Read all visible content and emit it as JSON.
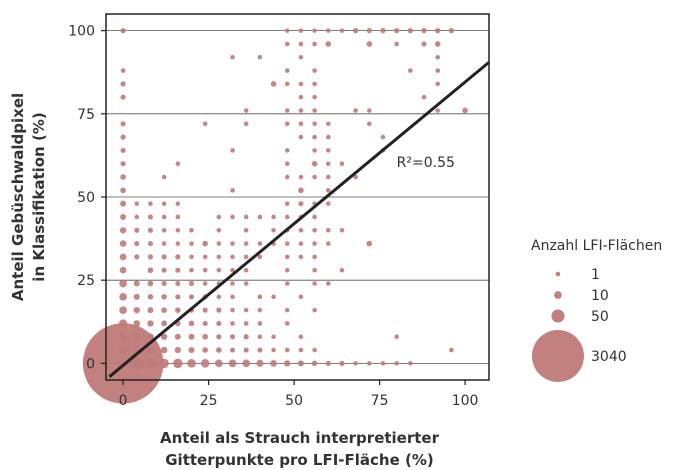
{
  "chart_data": {
    "type": "scatter",
    "title": "",
    "xlabel": [
      "Anteil als Strauch interpretierter",
      "Gitterpunkte pro LFI-Fläche (%)"
    ],
    "ylabel": [
      "Anteil Gebüschwaldpixel",
      "in Klassifikation (%)"
    ],
    "xlim": [
      -5,
      107
    ],
    "ylim": [
      -5,
      105
    ],
    "xticks": [
      0,
      25,
      50,
      75,
      100
    ],
    "yticks": [
      0,
      25,
      50,
      75,
      100
    ],
    "grid": "horizontal",
    "point_color": "#bf7a78",
    "line_color": "#222222",
    "regression_line": {
      "x": [
        -4,
        107
      ],
      "y": [
        -4,
        90.5
      ]
    },
    "annotation": {
      "text": "R²=0.55",
      "x": 80,
      "y": 59
    },
    "legend": {
      "title": "Anzahl LFI-Flächen",
      "position": "right",
      "entries": [
        {
          "label": "1",
          "count": 1
        },
        {
          "label": "10",
          "count": 10
        },
        {
          "label": "50",
          "count": 50
        },
        {
          "label": "3040",
          "count": 3040
        }
      ]
    },
    "points": [
      [
        0,
        0,
        3040
      ],
      [
        4,
        0,
        50
      ],
      [
        8,
        0,
        30
      ],
      [
        12,
        0,
        20
      ],
      [
        16,
        0,
        20
      ],
      [
        20,
        0,
        15
      ],
      [
        24,
        0,
        15
      ],
      [
        28,
        0,
        10
      ],
      [
        32,
        0,
        10
      ],
      [
        36,
        0,
        10
      ],
      [
        40,
        0,
        8
      ],
      [
        44,
        0,
        6
      ],
      [
        48,
        0,
        5
      ],
      [
        52,
        0,
        4
      ],
      [
        56,
        0,
        3
      ],
      [
        60,
        0,
        2
      ],
      [
        64,
        0,
        2
      ],
      [
        68,
        0,
        1
      ],
      [
        72,
        0,
        1
      ],
      [
        76,
        0,
        1
      ],
      [
        80,
        0,
        1
      ],
      [
        84,
        0,
        1
      ],
      [
        0,
        4,
        20
      ],
      [
        4,
        4,
        10
      ],
      [
        8,
        4,
        8
      ],
      [
        12,
        4,
        6
      ],
      [
        16,
        4,
        5
      ],
      [
        20,
        4,
        4
      ],
      [
        24,
        4,
        3
      ],
      [
        28,
        4,
        3
      ],
      [
        32,
        4,
        2
      ],
      [
        36,
        4,
        2
      ],
      [
        40,
        4,
        2
      ],
      [
        44,
        4,
        1
      ],
      [
        48,
        4,
        1
      ],
      [
        52,
        4,
        1
      ],
      [
        56,
        4,
        1
      ],
      [
        96,
        4,
        1
      ],
      [
        0,
        8,
        15
      ],
      [
        4,
        8,
        8
      ],
      [
        8,
        8,
        6
      ],
      [
        12,
        8,
        5
      ],
      [
        16,
        8,
        4
      ],
      [
        20,
        8,
        4
      ],
      [
        24,
        8,
        3
      ],
      [
        28,
        8,
        2
      ],
      [
        32,
        8,
        2
      ],
      [
        36,
        8,
        2
      ],
      [
        40,
        8,
        1
      ],
      [
        44,
        8,
        1
      ],
      [
        52,
        8,
        1
      ],
      [
        80,
        8,
        1
      ],
      [
        0,
        12,
        12
      ],
      [
        4,
        12,
        6
      ],
      [
        8,
        12,
        5
      ],
      [
        12,
        12,
        4
      ],
      [
        16,
        12,
        3
      ],
      [
        20,
        12,
        3
      ],
      [
        24,
        12,
        2
      ],
      [
        28,
        12,
        2
      ],
      [
        32,
        12,
        1
      ],
      [
        36,
        12,
        1
      ],
      [
        40,
        12,
        1
      ],
      [
        48,
        12,
        1
      ],
      [
        0,
        16,
        10
      ],
      [
        4,
        16,
        5
      ],
      [
        8,
        16,
        4
      ],
      [
        12,
        16,
        3
      ],
      [
        16,
        16,
        3
      ],
      [
        20,
        16,
        2
      ],
      [
        24,
        16,
        2
      ],
      [
        28,
        16,
        2
      ],
      [
        32,
        16,
        1
      ],
      [
        36,
        16,
        1
      ],
      [
        40,
        16,
        1
      ],
      [
        48,
        16,
        1
      ],
      [
        56,
        16,
        1
      ],
      [
        0,
        20,
        10
      ],
      [
        4,
        20,
        4
      ],
      [
        8,
        20,
        3
      ],
      [
        12,
        20,
        3
      ],
      [
        16,
        20,
        2
      ],
      [
        20,
        20,
        2
      ],
      [
        24,
        20,
        2
      ],
      [
        28,
        20,
        1
      ],
      [
        32,
        20,
        1
      ],
      [
        40,
        20,
        1
      ],
      [
        44,
        20,
        1
      ],
      [
        52,
        20,
        1
      ],
      [
        0,
        24,
        10
      ],
      [
        4,
        24,
        4
      ],
      [
        8,
        24,
        3
      ],
      [
        12,
        24,
        2
      ],
      [
        16,
        24,
        2
      ],
      [
        20,
        24,
        2
      ],
      [
        24,
        24,
        1
      ],
      [
        28,
        24,
        1
      ],
      [
        32,
        24,
        1
      ],
      [
        36,
        24,
        1
      ],
      [
        48,
        24,
        1
      ],
      [
        56,
        24,
        1
      ],
      [
        60,
        24,
        1
      ],
      [
        0,
        28,
        6
      ],
      [
        8,
        28,
        3
      ],
      [
        12,
        28,
        2
      ],
      [
        16,
        28,
        2
      ],
      [
        20,
        28,
        1
      ],
      [
        24,
        28,
        1
      ],
      [
        28,
        28,
        1
      ],
      [
        32,
        28,
        1
      ],
      [
        36,
        28,
        1
      ],
      [
        48,
        28,
        1
      ],
      [
        56,
        28,
        1
      ],
      [
        64,
        28,
        1
      ],
      [
        0,
        32,
        6
      ],
      [
        4,
        32,
        2
      ],
      [
        8,
        32,
        2
      ],
      [
        12,
        32,
        2
      ],
      [
        16,
        32,
        2
      ],
      [
        20,
        32,
        1
      ],
      [
        24,
        32,
        1
      ],
      [
        28,
        32,
        1
      ],
      [
        32,
        32,
        1
      ],
      [
        36,
        32,
        1
      ],
      [
        40,
        32,
        1
      ],
      [
        48,
        32,
        1
      ],
      [
        52,
        32,
        1
      ],
      [
        56,
        32,
        1
      ],
      [
        0,
        36,
        6
      ],
      [
        4,
        36,
        2
      ],
      [
        8,
        36,
        2
      ],
      [
        12,
        36,
        1
      ],
      [
        16,
        36,
        1
      ],
      [
        20,
        36,
        1
      ],
      [
        24,
        36,
        3
      ],
      [
        28,
        36,
        1
      ],
      [
        32,
        36,
        1
      ],
      [
        36,
        36,
        1
      ],
      [
        40,
        36,
        1
      ],
      [
        44,
        36,
        1
      ],
      [
        48,
        36,
        1
      ],
      [
        52,
        36,
        1
      ],
      [
        56,
        36,
        1
      ],
      [
        60,
        36,
        1
      ],
      [
        72,
        36,
        3
      ],
      [
        0,
        40,
        5
      ],
      [
        4,
        40,
        2
      ],
      [
        8,
        40,
        2
      ],
      [
        12,
        40,
        1
      ],
      [
        16,
        40,
        1
      ],
      [
        20,
        40,
        1
      ],
      [
        28,
        40,
        1
      ],
      [
        36,
        40,
        1
      ],
      [
        44,
        40,
        1
      ],
      [
        48,
        40,
        1
      ],
      [
        52,
        40,
        1
      ],
      [
        56,
        40,
        1
      ],
      [
        60,
        40,
        1
      ],
      [
        64,
        40,
        1
      ],
      [
        0,
        44,
        4
      ],
      [
        4,
        44,
        1
      ],
      [
        8,
        44,
        2
      ],
      [
        12,
        44,
        1
      ],
      [
        16,
        44,
        1
      ],
      [
        28,
        44,
        1
      ],
      [
        32,
        44,
        1
      ],
      [
        36,
        44,
        1
      ],
      [
        40,
        44,
        1
      ],
      [
        44,
        44,
        1
      ],
      [
        48,
        44,
        1
      ],
      [
        52,
        44,
        1
      ],
      [
        56,
        44,
        1
      ],
      [
        0,
        48,
        4
      ],
      [
        4,
        48,
        1
      ],
      [
        8,
        48,
        1
      ],
      [
        12,
        48,
        1
      ],
      [
        16,
        48,
        1
      ],
      [
        48,
        48,
        1
      ],
      [
        52,
        48,
        2
      ],
      [
        56,
        48,
        1
      ],
      [
        60,
        48,
        1
      ],
      [
        0,
        52,
        3
      ],
      [
        32,
        52,
        1
      ],
      [
        52,
        52,
        3
      ],
      [
        60,
        52,
        1
      ],
      [
        0,
        56,
        3
      ],
      [
        12,
        56,
        1
      ],
      [
        48,
        56,
        1
      ],
      [
        52,
        56,
        1
      ],
      [
        56,
        56,
        1
      ],
      [
        60,
        56,
        1
      ],
      [
        68,
        56,
        1
      ],
      [
        0,
        60,
        2
      ],
      [
        16,
        60,
        1
      ],
      [
        48,
        60,
        1
      ],
      [
        56,
        60,
        3
      ],
      [
        60,
        60,
        1
      ],
      [
        64,
        60,
        1
      ],
      [
        0,
        64,
        2
      ],
      [
        32,
        64,
        1
      ],
      [
        48,
        64,
        1
      ],
      [
        56,
        64,
        1
      ],
      [
        60,
        64,
        1
      ],
      [
        76,
        64,
        1
      ],
      [
        0,
        68,
        2
      ],
      [
        52,
        68,
        1
      ],
      [
        56,
        68,
        1
      ],
      [
        60,
        68,
        1
      ],
      [
        76,
        68,
        1
      ],
      [
        0,
        72,
        2
      ],
      [
        24,
        72,
        1
      ],
      [
        36,
        72,
        1
      ],
      [
        48,
        72,
        1
      ],
      [
        52,
        72,
        1
      ],
      [
        56,
        72,
        1
      ],
      [
        60,
        72,
        1
      ],
      [
        72,
        72,
        1
      ],
      [
        36,
        76,
        1
      ],
      [
        48,
        76,
        1
      ],
      [
        52,
        76,
        1
      ],
      [
        56,
        76,
        1
      ],
      [
        68,
        76,
        1
      ],
      [
        72,
        76,
        1
      ],
      [
        92,
        76,
        1
      ],
      [
        100,
        76,
        3
      ],
      [
        52,
        80,
        1
      ],
      [
        56,
        80,
        1
      ],
      [
        88,
        80,
        1
      ],
      [
        0,
        80,
        2
      ],
      [
        0,
        84,
        2
      ],
      [
        44,
        84,
        3
      ],
      [
        48,
        84,
        1
      ],
      [
        52,
        84,
        1
      ],
      [
        56,
        84,
        1
      ],
      [
        92,
        84,
        1
      ],
      [
        0,
        88,
        1
      ],
      [
        48,
        88,
        1
      ],
      [
        56,
        88,
        1
      ],
      [
        84,
        88,
        1
      ],
      [
        92,
        88,
        1
      ],
      [
        32,
        92,
        1
      ],
      [
        40,
        92,
        1
      ],
      [
        52,
        92,
        1
      ],
      [
        92,
        92,
        1
      ],
      [
        48,
        96,
        1
      ],
      [
        52,
        96,
        1
      ],
      [
        56,
        96,
        1
      ],
      [
        60,
        96,
        3
      ],
      [
        72,
        96,
        3
      ],
      [
        80,
        96,
        1
      ],
      [
        88,
        96,
        2
      ],
      [
        92,
        96,
        3
      ],
      [
        0,
        100,
        2
      ],
      [
        48,
        100,
        1
      ],
      [
        52,
        100,
        1
      ],
      [
        56,
        100,
        1
      ],
      [
        60,
        100,
        1
      ],
      [
        64,
        100,
        1
      ],
      [
        68,
        100,
        2
      ],
      [
        72,
        100,
        2
      ],
      [
        76,
        100,
        2
      ],
      [
        80,
        100,
        2
      ],
      [
        84,
        100,
        2
      ],
      [
        88,
        100,
        2
      ],
      [
        92,
        100,
        2
      ],
      [
        96,
        100,
        2
      ]
    ]
  }
}
